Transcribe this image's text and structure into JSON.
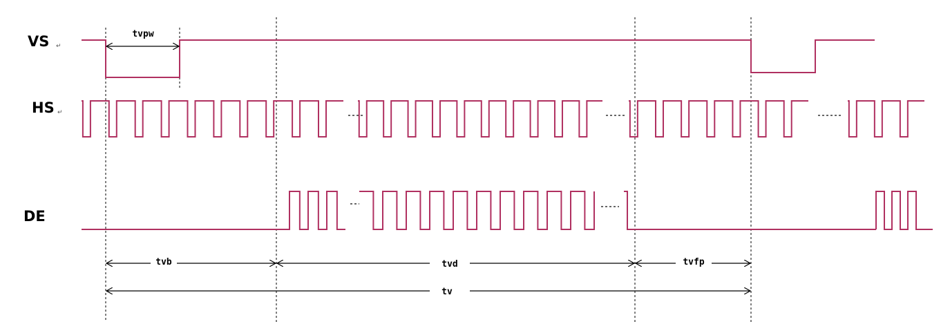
{
  "diagram": {
    "type": "timing-diagram",
    "signals": [
      {
        "name": "VS",
        "return_mark": "↵"
      },
      {
        "name": "HS",
        "return_mark": "↵"
      },
      {
        "name": "DE",
        "return_mark": ""
      }
    ],
    "spans": [
      {
        "id": "tvpw",
        "label": "tvpw"
      },
      {
        "id": "tvb",
        "label": "tvb"
      },
      {
        "id": "tvd",
        "label": "tvd"
      },
      {
        "id": "tvfp",
        "label": "tvfp"
      },
      {
        "id": "tv",
        "label": "tv"
      }
    ],
    "colors": {
      "waveform": "#b03060",
      "guides": "#000000",
      "background": "#ffffff"
    }
  }
}
